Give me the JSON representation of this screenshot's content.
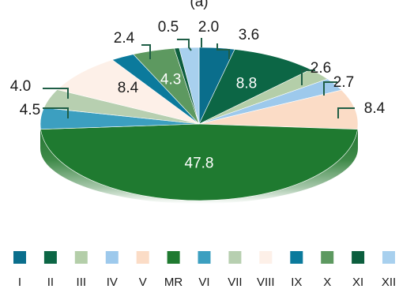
{
  "chart_data": {
    "type": "pie",
    "title": "(a)",
    "categories": [
      "I",
      "II",
      "III",
      "IV",
      "V",
      "MR",
      "VI",
      "VII",
      "VIII",
      "IX",
      "X",
      "XI",
      "XII"
    ],
    "slices": [
      {
        "label": "I",
        "value": 3.6,
        "color": "#0a6e8c"
      },
      {
        "label": "II",
        "value": 8.8,
        "color": "#0c6645"
      },
      {
        "label": "III",
        "value": 2.6,
        "color": "#b4cea9"
      },
      {
        "label": "IV",
        "value": 2.7,
        "color": "#9dc9ec"
      },
      {
        "label": "V",
        "value": 8.4,
        "color": "#fbdcc6"
      },
      {
        "label": "MR",
        "value": 47.8,
        "color": "#1f7a30"
      },
      {
        "label": "VI",
        "value": 4.5,
        "color": "#3c9fc0"
      },
      {
        "label": "VII",
        "value": 4.0,
        "color": "#b7cfb0"
      },
      {
        "label": "VIII",
        "value": 8.4,
        "color": "#fdf0e8"
      },
      {
        "label": "IX",
        "value": 2.4,
        "color": "#0b7a9c"
      },
      {
        "label": "X",
        "value": 4.3,
        "color": "#5d9960"
      },
      {
        "label": "XI",
        "value": 0.5,
        "color": "#0c5e3e"
      },
      {
        "label": "XII",
        "value": 2.0,
        "color": "#a8d0ee"
      }
    ],
    "legend_position": "bottom"
  }
}
